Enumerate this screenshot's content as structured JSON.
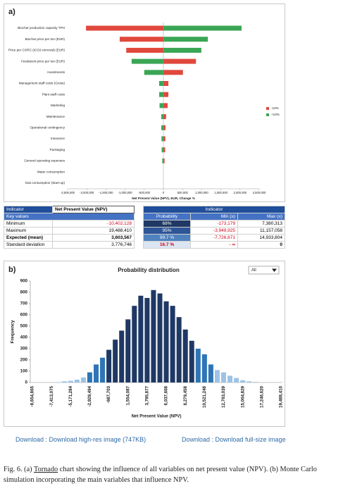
{
  "chart_data": [
    {
      "type": "tornado",
      "label": "a)",
      "categories": [
        "Biochar production capacity TPH",
        "Biochar price per ton (EUR)",
        "Price per CORC (tCO2-removal) (EUR)",
        "Feedstock price per ton (EUR)",
        "Investments",
        "Management staff costs (Gross)",
        "Plant staff costs",
        "Marketing",
        "Maintenance",
        "Operational contingency",
        "Insurance",
        "Packaging",
        "General operating expenses",
        "Water consumption",
        "Gas consumption (Start-up)"
      ],
      "series": [
        {
          "name": "-10%",
          "color": "#e0483c",
          "values": [
            -2020000,
            -1140000,
            -970000,
            850000,
            510000,
            130000,
            130000,
            110000,
            70000,
            55000,
            50000,
            45000,
            30000,
            0,
            0
          ]
        },
        {
          "name": "+10%",
          "color": "#3aa655",
          "values": [
            2040000,
            1160000,
            990000,
            -830000,
            -500000,
            -110000,
            -110000,
            -100000,
            -55000,
            -55000,
            -50000,
            -45000,
            -30000,
            0,
            0
          ]
        }
      ],
      "xlim": [
        -2500000,
        2500000
      ],
      "xticks": [
        {
          "value": -2500000,
          "label": "-2,500,000"
        },
        {
          "value": -2000000,
          "label": "-2,000,000"
        },
        {
          "value": -1500000,
          "label": "-1,500,000"
        },
        {
          "value": -1000000,
          "label": "-1,000,000"
        },
        {
          "value": -500000,
          "label": "-500,000"
        },
        0,
        {
          "value": 500000,
          "label": "500,000"
        },
        {
          "value": 1000000,
          "label": "1,000,000"
        },
        {
          "value": 1500000,
          "label": "1,500,000"
        },
        {
          "value": 2000000,
          "label": "2,000,000"
        },
        {
          "value": 2500000,
          "label": "2,500,000"
        }
      ],
      "x_label": "Net Present Value (NPV), EUR, Change %",
      "legend": "right"
    },
    {
      "type": "bar",
      "label": "b)",
      "title": "Probability distribution",
      "dropdown": "All",
      "categories": [
        "-9,654,865",
        null,
        null,
        "-7,413,075",
        null,
        null,
        "-5,171,284",
        null,
        null,
        "-2,929,494",
        null,
        null,
        "-687,703",
        null,
        null,
        "1,554,087",
        null,
        null,
        "3,795,877",
        null,
        null,
        "6,037,668",
        null,
        null,
        "8,279,458",
        null,
        null,
        "10,521,248",
        null,
        null,
        "12,763,039",
        null,
        null,
        "15,004,829",
        null,
        null,
        "17,246,620",
        null,
        null,
        "19,488,410"
      ],
      "values": [
        0,
        0,
        0,
        0,
        3,
        10,
        15,
        25,
        45,
        90,
        160,
        220,
        290,
        380,
        460,
        560,
        680,
        770,
        750,
        820,
        790,
        720,
        680,
        580,
        470,
        370,
        300,
        250,
        160,
        110,
        90,
        60,
        40,
        20,
        10,
        5,
        0,
        0,
        0,
        0
      ],
      "colors": [
        "#9dc3e6",
        "#9dc3e6",
        "#9dc3e6",
        "#9dc3e6",
        "#9dc3e6",
        "#9dc3e6",
        "#9dc3e6",
        "#9dc3e6",
        "#9dc3e6",
        "#2e75b6",
        "#2e75b6",
        "#2e75b6",
        "#1f3864",
        "#1f3864",
        "#1f3864",
        "#1f3864",
        "#1f3864",
        "#1f3864",
        "#1f3864",
        "#1f3864",
        "#1f3864",
        "#1f3864",
        "#1f3864",
        "#1f3864",
        "#1f3864",
        "#1f3864",
        "#2e75b6",
        "#2e75b6",
        "#2e75b6",
        "#9dc3e6",
        "#9dc3e6",
        "#9dc3e6",
        "#9dc3e6",
        "#9dc3e6",
        "#9dc3e6",
        "#9dc3e6",
        "#9dc3e6",
        "#9dc3e6",
        "#9dc3e6",
        "#9dc3e6"
      ],
      "ylim": [
        0,
        900
      ],
      "yticks": [
        0,
        100,
        200,
        300,
        400,
        500,
        600,
        700,
        800,
        900
      ],
      "x_label": "Net Present Value (NPV)",
      "y_label": "Frequency"
    }
  ],
  "tables": [
    {
      "header": [
        "Indicator",
        "Net Present Value (NPV)"
      ],
      "subheader": "Key values",
      "rows": [
        [
          "Minimum",
          "-10,402,128"
        ],
        [
          "Maximum",
          "19,488,410"
        ],
        [
          "Expected (mean)",
          "3,603,567"
        ],
        [
          "Standard deviation",
          "3,776,746"
        ]
      ]
    },
    {
      "header": "Indicator",
      "columns": [
        "Probability",
        "Min (≥)",
        "Max (≤)"
      ],
      "rows": [
        [
          "68%",
          "-173,179",
          "7,380,313"
        ],
        [
          "95%",
          "-3,949,925",
          "11,157,058"
        ],
        [
          "99.7 %",
          "-7,726,671",
          "14,933,804"
        ],
        [
          "16.7 %",
          "- ∞",
          "0"
        ]
      ]
    }
  ],
  "links": [
    "Download : Download high-res image (747KB)",
    "Download : Download full-size image"
  ],
  "caption": [
    "Fig. 6. (a) ",
    "Tornado",
    " chart showing the influence of all variables on net present value (NPV). (b) Monte Carlo simulation incorporating the main variables that influence NPV."
  ]
}
